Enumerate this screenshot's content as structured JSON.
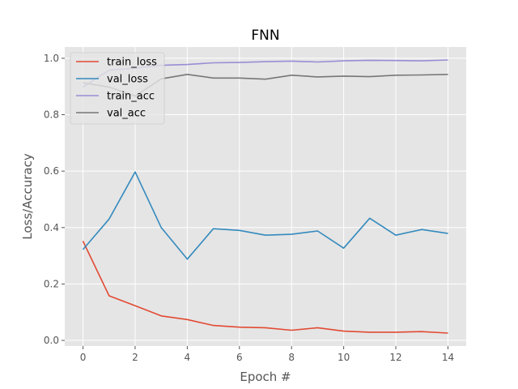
{
  "chart_data": {
    "type": "line",
    "title": "FNN",
    "xlabel": "Epoch #",
    "ylabel": "Loss/Accuracy",
    "x": [
      0,
      1,
      2,
      3,
      4,
      5,
      6,
      7,
      8,
      9,
      10,
      11,
      12,
      13,
      14
    ],
    "xlim": [
      -0.7,
      14.7
    ],
    "ylim": [
      -0.02,
      1.04
    ],
    "xticks": [
      0,
      2,
      4,
      6,
      8,
      10,
      12,
      14
    ],
    "yticks": [
      0.0,
      0.2,
      0.4,
      0.6,
      0.8,
      1.0
    ],
    "xtick_labels": [
      "0",
      "2",
      "4",
      "6",
      "8",
      "10",
      "12",
      "14"
    ],
    "ytick_labels": [
      "0.0",
      "0.2",
      "0.4",
      "0.6",
      "0.8",
      "1.0"
    ],
    "grid": true,
    "legend_position": "top-left",
    "series": [
      {
        "name": "train_loss",
        "color": "#E24A33",
        "values": [
          0.352,
          0.158,
          0.123,
          0.087,
          0.074,
          0.053,
          0.047,
          0.045,
          0.036,
          0.045,
          0.033,
          0.029,
          0.029,
          0.031,
          0.026
        ]
      },
      {
        "name": "val_loss",
        "color": "#348ABD",
        "values": [
          0.322,
          0.43,
          0.597,
          0.4,
          0.288,
          0.396,
          0.39,
          0.373,
          0.376,
          0.388,
          0.327,
          0.433,
          0.373,
          0.393,
          0.379
        ]
      },
      {
        "name": "train_acc",
        "color": "#988ED5",
        "values": [
          0.898,
          0.958,
          0.965,
          0.975,
          0.978,
          0.984,
          0.985,
          0.988,
          0.99,
          0.987,
          0.991,
          0.993,
          0.992,
          0.991,
          0.994
        ]
      },
      {
        "name": "val_acc",
        "color": "#777777",
        "values": [
          0.913,
          0.898,
          0.866,
          0.927,
          0.943,
          0.93,
          0.93,
          0.926,
          0.94,
          0.934,
          0.937,
          0.935,
          0.94,
          0.941,
          0.943
        ]
      }
    ]
  }
}
